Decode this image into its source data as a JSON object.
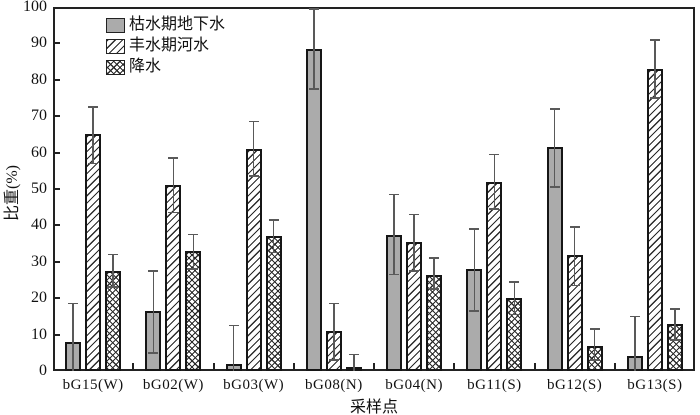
{
  "chart_data": {
    "type": "bar",
    "title": "",
    "xlabel": "采样点",
    "ylabel": "比重(%)",
    "ylim": [
      0,
      100
    ],
    "y_ticks": [
      0,
      10,
      20,
      30,
      40,
      50,
      60,
      70,
      80,
      90,
      100
    ],
    "grid": false,
    "legend_position": "top-left-inside",
    "error_bars": true,
    "categories": [
      "bG15(W)",
      "bG02(W)",
      "bG03(W)",
      "bG08(N)",
      "bG04(N)",
      "bG11(S)",
      "bG12(S)",
      "bG13(S)"
    ],
    "series": [
      {
        "name": "枯水期地下水",
        "style": "solid-gray",
        "values": [
          8,
          16.5,
          2,
          88.5,
          37.5,
          28,
          61.5,
          4
        ],
        "err_top": [
          18.5,
          27.5,
          12.5,
          99.5,
          48.5,
          39,
          72,
          15
        ],
        "err_bot": [
          0,
          5,
          0,
          77.5,
          26.5,
          16.5,
          50.5,
          0
        ]
      },
      {
        "name": "丰水期河水",
        "style": "diagonal-hatch",
        "values": [
          65,
          51,
          61,
          11,
          35.5,
          52,
          32,
          83
        ],
        "err_top": [
          72.5,
          58.5,
          68.5,
          18.5,
          43,
          59.5,
          39.5,
          91
        ],
        "err_bot": [
          57,
          43.5,
          53.5,
          3,
          27.5,
          44.5,
          23.5,
          75
        ]
      },
      {
        "name": "降水",
        "style": "cross-hatch",
        "values": [
          27.5,
          33,
          37,
          1,
          26.5,
          20,
          7,
          13
        ],
        "err_top": [
          32,
          37.5,
          41.5,
          4.5,
          31,
          24.5,
          11.5,
          17
        ],
        "err_bot": [
          23,
          28,
          32.5,
          0,
          22.5,
          15.5,
          3,
          8.5
        ]
      }
    ]
  },
  "colors": {
    "background": "#ffffff",
    "axis": "#222222",
    "bar_gray": "#ababab",
    "hatch_line": "#2a2a2a",
    "error_bar": "#595959"
  }
}
